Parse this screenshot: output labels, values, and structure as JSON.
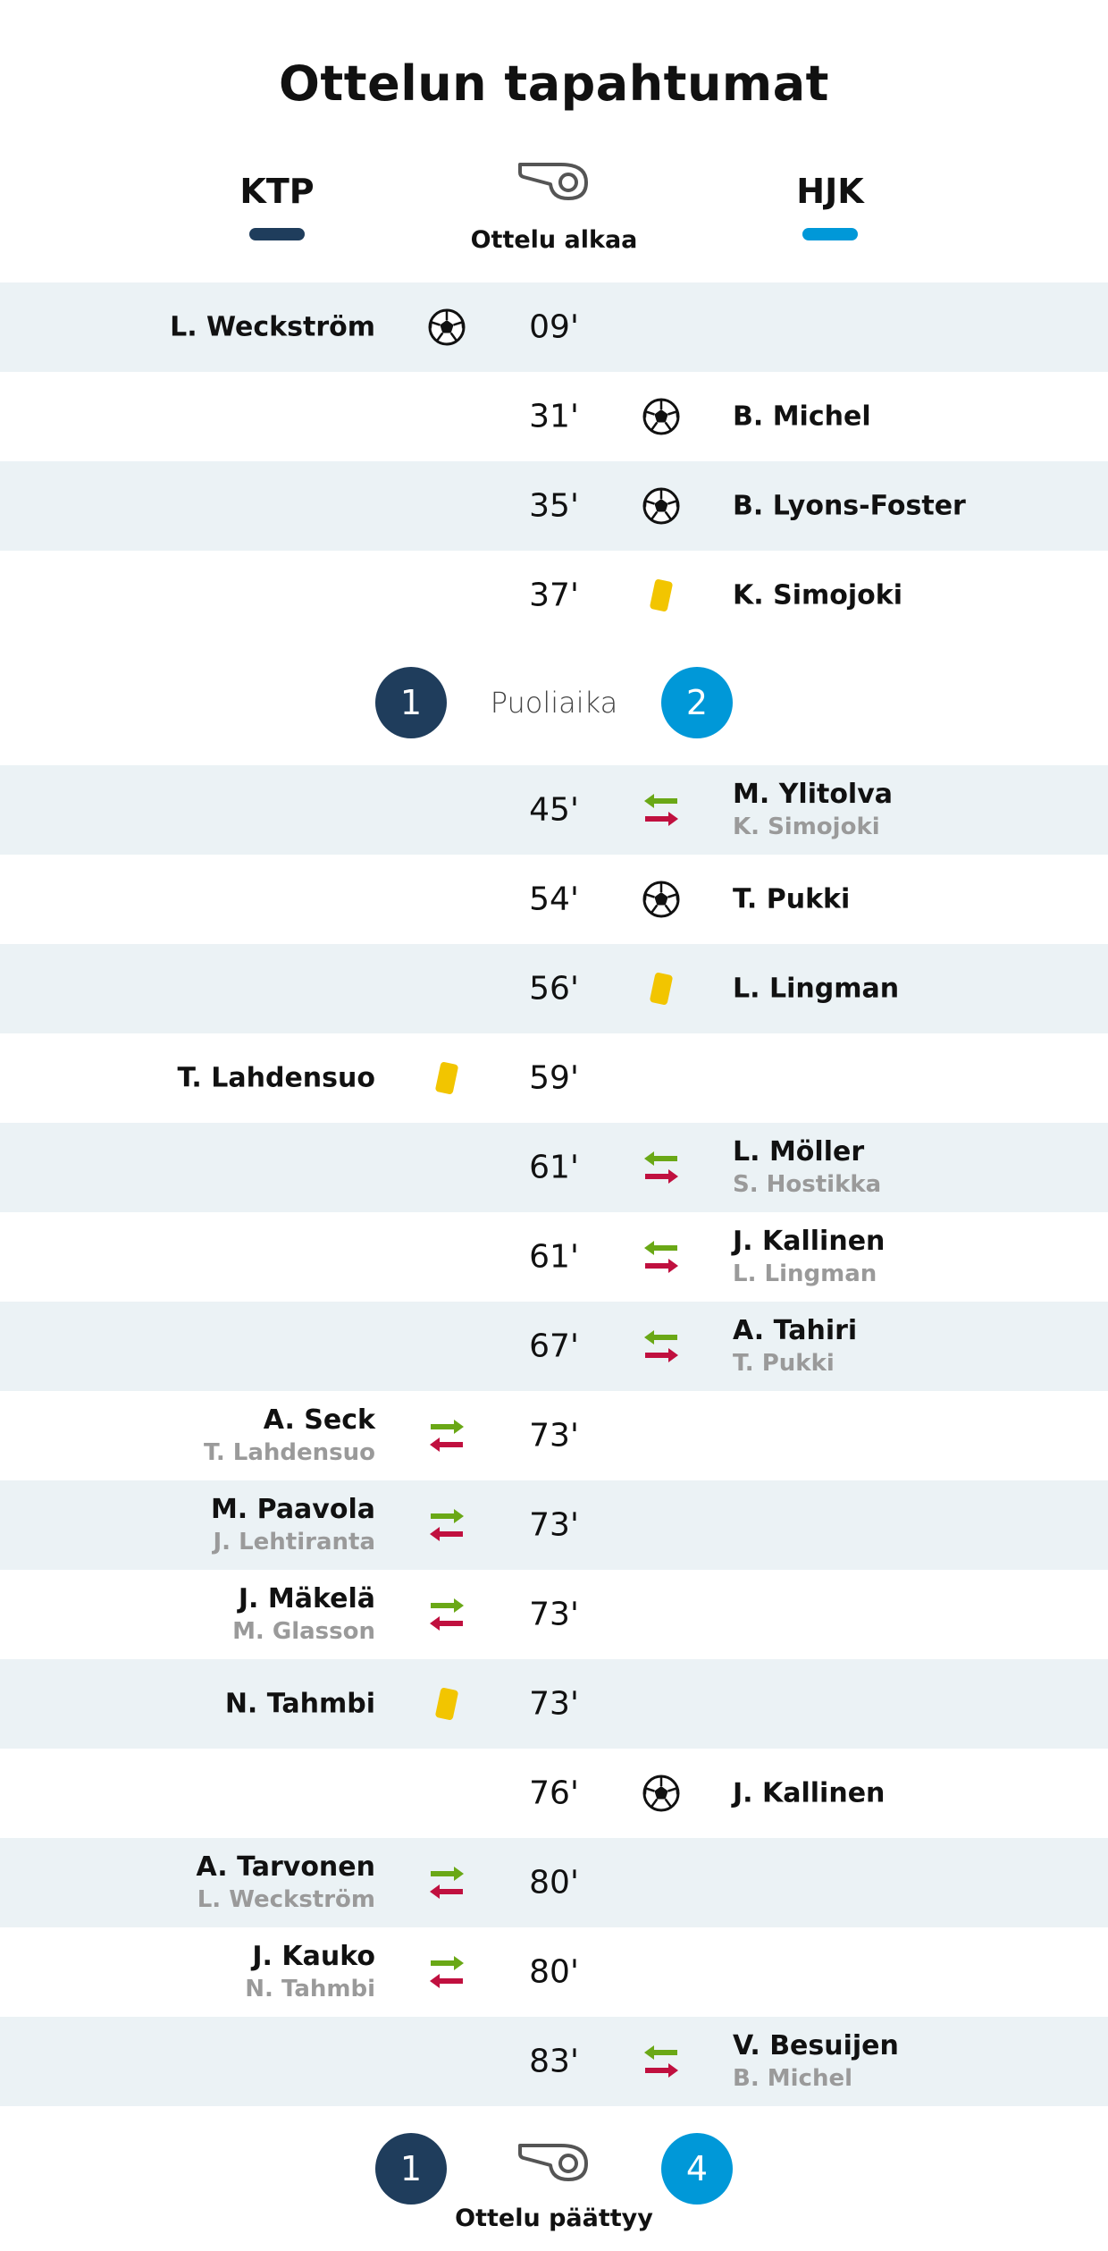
{
  "title": "Ottelun tapahtumat",
  "home": {
    "name": "KTP",
    "color": "#1f3d5c"
  },
  "away": {
    "name": "HJK",
    "color": "#0098d8"
  },
  "start_label": "Ottelu alkaa",
  "halftime": {
    "label": "Puoliaika",
    "home_score": "1",
    "away_score": "2"
  },
  "fulltime": {
    "label": "Ottelu päättyy",
    "home_score": "1",
    "away_score": "4"
  },
  "icons": {
    "goal": "soccer-ball-icon",
    "yellow": "yellow-card-icon",
    "sub": "substitution-arrows-icon",
    "whistle": "whistle-icon"
  },
  "events_first_half": [
    {
      "minute": "09'",
      "side": "home",
      "type": "goal",
      "player": "L. Weckström"
    },
    {
      "minute": "31'",
      "side": "away",
      "type": "goal",
      "player": "B. Michel"
    },
    {
      "minute": "35'",
      "side": "away",
      "type": "goal",
      "player": "B. Lyons-Foster"
    },
    {
      "minute": "37'",
      "side": "away",
      "type": "yellow",
      "player": "K. Simojoki"
    }
  ],
  "events_second_half": [
    {
      "minute": "45'",
      "side": "away",
      "type": "sub",
      "player_in": "M. Ylitolva",
      "player_out": "K. Simojoki"
    },
    {
      "minute": "54'",
      "side": "away",
      "type": "goal",
      "player": "T. Pukki"
    },
    {
      "minute": "56'",
      "side": "away",
      "type": "yellow",
      "player": "L. Lingman"
    },
    {
      "minute": "59'",
      "side": "home",
      "type": "yellow",
      "player": "T. Lahdensuo"
    },
    {
      "minute": "61'",
      "side": "away",
      "type": "sub",
      "player_in": "L. Möller",
      "player_out": "S. Hostikka"
    },
    {
      "minute": "61'",
      "side": "away",
      "type": "sub",
      "player_in": "J. Kallinen",
      "player_out": "L. Lingman"
    },
    {
      "minute": "67'",
      "side": "away",
      "type": "sub",
      "player_in": "A. Tahiri",
      "player_out": "T. Pukki"
    },
    {
      "minute": "73'",
      "side": "home",
      "type": "sub",
      "player_in": "A. Seck",
      "player_out": "T. Lahdensuo"
    },
    {
      "minute": "73'",
      "side": "home",
      "type": "sub",
      "player_in": "M. Paavola",
      "player_out": "J. Lehtiranta"
    },
    {
      "minute": "73'",
      "side": "home",
      "type": "sub",
      "player_in": "J. Mäkelä",
      "player_out": "M. Glasson"
    },
    {
      "minute": "73'",
      "side": "home",
      "type": "yellow",
      "player": "N. Tahmbi"
    },
    {
      "minute": "76'",
      "side": "away",
      "type": "goal",
      "player": "J. Kallinen"
    },
    {
      "minute": "80'",
      "side": "home",
      "type": "sub",
      "player_in": "A. Tarvonen",
      "player_out": "L. Weckström"
    },
    {
      "minute": "80'",
      "side": "home",
      "type": "sub",
      "player_in": "J. Kauko",
      "player_out": "N. Tahmbi"
    },
    {
      "minute": "83'",
      "side": "away",
      "type": "sub",
      "player_in": "V. Besuijen",
      "player_out": "B. Michel"
    }
  ]
}
